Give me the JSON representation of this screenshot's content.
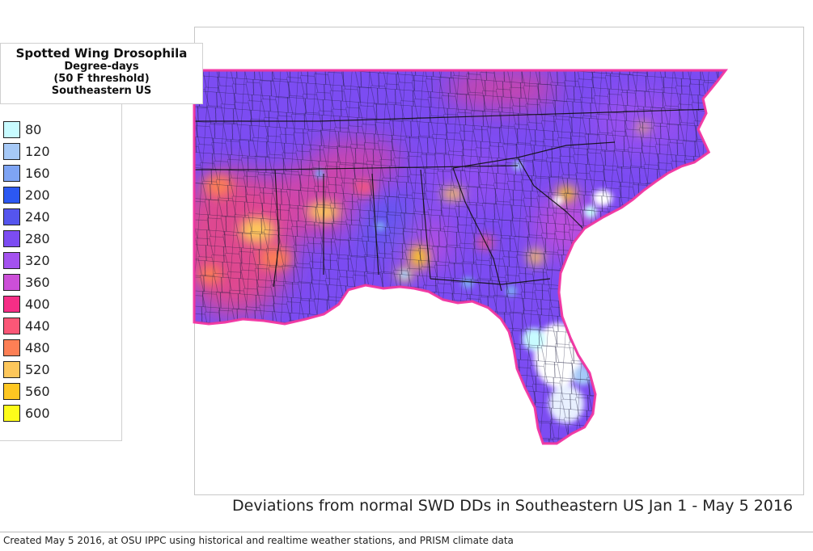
{
  "title": {
    "line1": "Spotted Wing Drosophila",
    "line2": "Degree-days",
    "line3": "(50 F threshold)",
    "line4": "Southeastern US"
  },
  "legend": [
    {
      "label": "80",
      "color": "#c8fbff"
    },
    {
      "label": "120",
      "color": "#a6c9f7"
    },
    {
      "label": "160",
      "color": "#7ea4f4"
    },
    {
      "label": "200",
      "color": "#2c58f2"
    },
    {
      "label": "240",
      "color": "#5555ee"
    },
    {
      "label": "280",
      "color": "#7c4cf2"
    },
    {
      "label": "320",
      "color": "#a452ef"
    },
    {
      "label": "360",
      "color": "#cc4fd8"
    },
    {
      "label": "400",
      "color": "#f62e86"
    },
    {
      "label": "440",
      "color": "#fb5777"
    },
    {
      "label": "480",
      "color": "#fd7f55"
    },
    {
      "label": "520",
      "color": "#fdc75b"
    },
    {
      "label": "560",
      "color": "#fec722"
    },
    {
      "label": "600",
      "color": "#fdfc1a"
    }
  ],
  "caption": "Deviations from normal SWD DDs in Southeastern US Jan 1 - May 5 2016",
  "footer": "Created May 5 2016, at OSU IPPC using  historical and  realtime weather stations, and PRISM climate data"
}
